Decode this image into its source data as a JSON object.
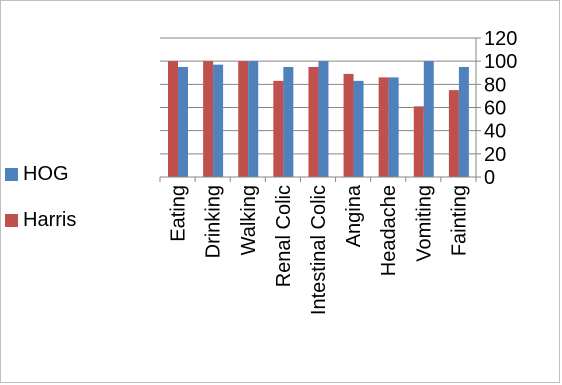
{
  "chart_data": {
    "type": "bar",
    "categories": [
      "Eating",
      "Drinking",
      "Walking",
      "Renal Colic",
      "Intestinal Colic",
      "Angina",
      "Headache",
      "Vomiting",
      "Fainting"
    ],
    "series": [
      {
        "name": "Harris",
        "color": "#c0504d",
        "values": [
          100,
          100,
          100,
          83,
          95,
          89,
          86,
          61,
          75
        ]
      },
      {
        "name": "HOG",
        "color": "#4f81bd",
        "values": [
          95,
          97,
          100,
          95,
          100,
          83,
          86,
          100,
          95
        ]
      }
    ],
    "ylim": [
      0,
      120
    ],
    "yticks": [
      "0",
      "20",
      "40",
      "60",
      "80",
      "100",
      "120"
    ],
    "grid": true,
    "legend_position": "left",
    "title": "",
    "xlabel": "",
    "ylabel": ""
  },
  "legend": {
    "items": [
      {
        "label": "HOG",
        "color": "#4f81bd"
      },
      {
        "label": "Harris",
        "color": "#c0504d"
      }
    ]
  }
}
